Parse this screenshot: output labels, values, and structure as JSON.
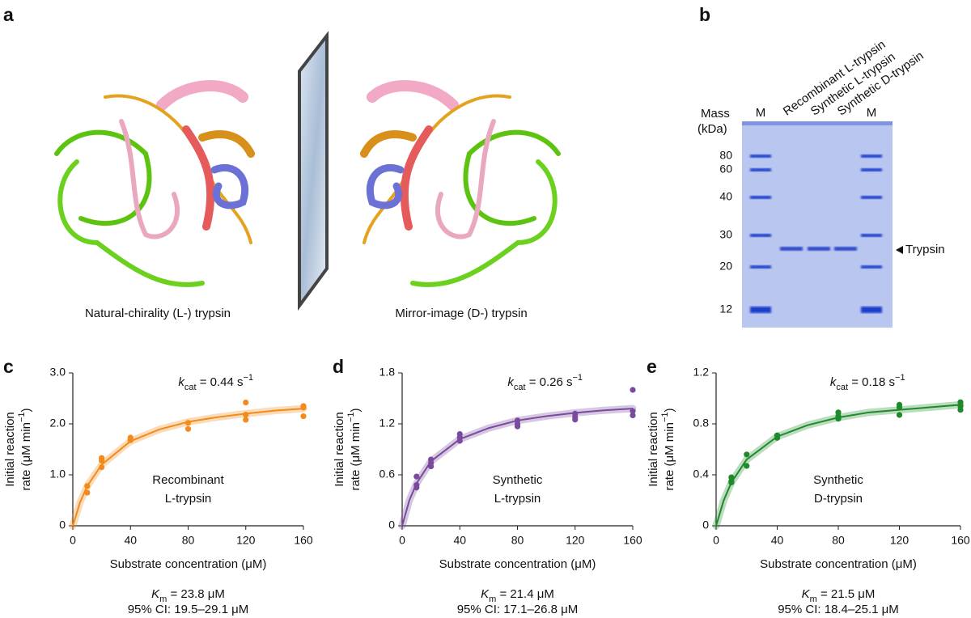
{
  "panel_a": {
    "label": "a",
    "captions": [
      "Natural-chirality (L-) trypsin",
      "Mirror-image (D-) trypsin"
    ]
  },
  "panel_b": {
    "label": "b",
    "axis_title": [
      "Mass",
      "(kDa)"
    ],
    "markers": [
      80,
      60,
      40,
      30,
      20,
      12
    ],
    "lanes": [
      "M",
      "Recombinant L-trypsin",
      "Synthetic L-trypsin",
      "Synthetic D-trypsin",
      "M"
    ],
    "band_label": "Trypsin"
  },
  "chart_data": [
    {
      "type": "scatter",
      "label": "c",
      "color": "#f28a1c",
      "kcat": {
        "symbol": "k",
        "subscript": "cat",
        "text": " = 0.44 s",
        "superscript": "−1"
      },
      "sample": [
        "Recombinant",
        "L-trypsin"
      ],
      "x_label": "Substrate concentration (μM)",
      "y_label": {
        "line1": "Initial reaction",
        "line2": "rate (μM min",
        "superscript": "−1",
        "close": ")"
      },
      "km": {
        "symbol": "K",
        "subscript": "m",
        "text": " = 23.8 μM"
      },
      "ci": "95% CI: 19.5–29.1 μM",
      "xlim": [
        0,
        160
      ],
      "xticks": [
        0,
        40,
        80,
        120,
        160
      ],
      "ylim": [
        0,
        3
      ],
      "yticks": [
        0,
        {
          "value": 1,
          "label": "1.0"
        },
        {
          "value": 2,
          "label": "2.0"
        },
        {
          "value": 3,
          "label": "3.0"
        }
      ],
      "points": {
        "x": [
          10,
          10,
          20,
          20,
          20,
          40,
          40,
          80,
          80,
          120,
          120,
          120,
          160,
          160,
          160
        ],
        "values": [
          0.78,
          0.65,
          1.33,
          1.28,
          1.15,
          1.73,
          1.68,
          2.02,
          1.9,
          2.42,
          2.18,
          2.08,
          2.35,
          2.32,
          2.15
        ]
      },
      "fit": {
        "x": [
          0,
          5,
          10,
          20,
          40,
          60,
          80,
          100,
          120,
          140,
          160
        ],
        "values": [
          0,
          0.46,
          0.78,
          1.2,
          1.66,
          1.89,
          2.04,
          2.13,
          2.2,
          2.26,
          2.3
        ]
      }
    },
    {
      "type": "scatter",
      "label": "d",
      "color": "#7a4a9e",
      "kcat": {
        "symbol": "k",
        "subscript": "cat",
        "text": " = 0.26 s",
        "superscript": "−1"
      },
      "sample": [
        "Synthetic",
        "L-trypsin"
      ],
      "x_label": "Substrate concentration (μM)",
      "y_label": {
        "line1": "Initial reaction",
        "line2": "rate (μM min",
        "superscript": "−1",
        "close": ")"
      },
      "km": {
        "symbol": "K",
        "subscript": "m",
        "text": " = 21.4 μM"
      },
      "ci": "95% CI: 17.1–26.8 μM",
      "xlim": [
        0,
        160
      ],
      "xticks": [
        0,
        40,
        80,
        120,
        160
      ],
      "ylim": [
        0,
        1.8
      ],
      "yticks": [
        0,
        0.6,
        1.2,
        1.8
      ],
      "points": {
        "x": [
          10,
          10,
          10,
          20,
          20,
          20,
          40,
          40,
          40,
          80,
          80,
          80,
          120,
          120,
          120,
          160,
          160,
          160
        ],
        "values": [
          0.58,
          0.48,
          0.45,
          0.78,
          0.74,
          0.7,
          1.08,
          1.04,
          1.0,
          1.24,
          1.2,
          1.17,
          1.32,
          1.28,
          1.25,
          1.6,
          1.35,
          1.3
        ]
      },
      "fit": {
        "x": [
          0,
          5,
          10,
          20,
          40,
          60,
          80,
          100,
          120,
          140,
          160
        ],
        "values": [
          0,
          0.3,
          0.5,
          0.76,
          1.02,
          1.15,
          1.24,
          1.29,
          1.33,
          1.36,
          1.38
        ]
      }
    },
    {
      "type": "scatter",
      "label": "e",
      "color": "#1e8a2a",
      "kcat": {
        "symbol": "k",
        "subscript": "cat",
        "text": " = 0.18 s",
        "superscript": "−1"
      },
      "sample": [
        "Synthetic",
        "D-trypsin"
      ],
      "x_label": "Substrate concentration (μM)",
      "y_label": {
        "line1": "Initial reaction",
        "line2": "rate (μM min",
        "superscript": "−1",
        "close": ")"
      },
      "km": {
        "symbol": "K",
        "subscript": "m",
        "text": " = 21.5 μM"
      },
      "ci": "95% CI: 18.4–25.1 μM",
      "xlim": [
        0,
        160
      ],
      "xticks": [
        0,
        40,
        80,
        120,
        160
      ],
      "ylim": [
        0,
        1.2
      ],
      "yticks": [
        0,
        0.4,
        0.8,
        1.2
      ],
      "points": {
        "x": [
          10,
          10,
          10,
          20,
          20,
          40,
          40,
          80,
          80,
          80,
          120,
          120,
          120,
          160,
          160,
          160
        ],
        "values": [
          0.38,
          0.35,
          0.34,
          0.56,
          0.47,
          0.71,
          0.69,
          0.89,
          0.86,
          0.84,
          0.95,
          0.93,
          0.87,
          0.97,
          0.94,
          0.91
        ]
      },
      "fit": {
        "x": [
          0,
          5,
          10,
          20,
          40,
          60,
          80,
          100,
          120,
          140,
          160
        ],
        "values": [
          0,
          0.2,
          0.34,
          0.52,
          0.7,
          0.79,
          0.85,
          0.89,
          0.91,
          0.93,
          0.95
        ]
      }
    }
  ]
}
